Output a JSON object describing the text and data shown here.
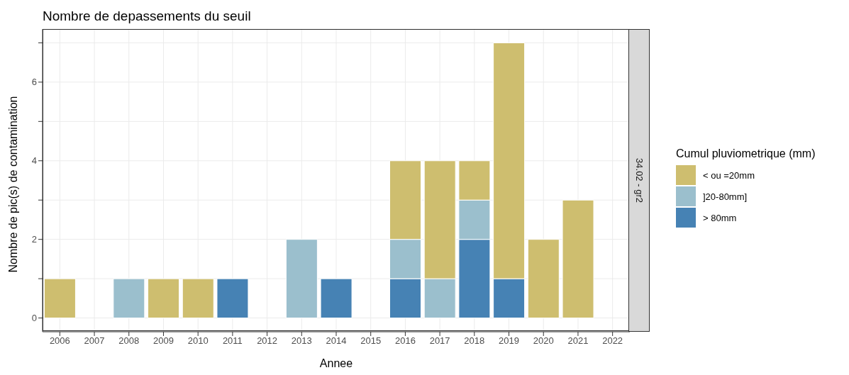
{
  "chart_data": {
    "type": "bar",
    "title": "Nombre de depassements du seuil",
    "xlabel": "Annee",
    "ylabel": "Nombre de pic(s) de contamination",
    "legend_title": "Cumul pluviometrique (mm)",
    "annotations": [
      "34.02 - gr2"
    ],
    "categories": [
      "2006",
      "2007",
      "2008",
      "2009",
      "2010",
      "2011",
      "2012",
      "2013",
      "2014",
      "2015",
      "2016",
      "2017",
      "2018",
      "2019",
      "2020",
      "2021",
      "2022"
    ],
    "stacked": true,
    "series": [
      {
        "name": "> 80mm",
        "color": "#4682b4",
        "values": [
          0,
          0,
          0,
          0,
          0,
          1,
          0,
          0,
          1,
          0,
          1,
          0,
          2,
          1,
          0,
          0,
          0
        ]
      },
      {
        "name": "]20-80mm]",
        "color": "#9bbfcd",
        "values": [
          0,
          0,
          1,
          0,
          0,
          0,
          0,
          2,
          0,
          0,
          1,
          1,
          1,
          0,
          0,
          0,
          0
        ]
      },
      {
        "name": "< ou =20mm",
        "color": "#cebe6f",
        "values": [
          1,
          0,
          0,
          1,
          1,
          0,
          0,
          0,
          0,
          0,
          2,
          3,
          1,
          6,
          2,
          3,
          0
        ]
      }
    ],
    "ylim": [
      -0.35,
      7.35
    ],
    "yticks": [
      0,
      {
        "value": 1,
        "label": null
      },
      2,
      {
        "value": 3,
        "label": null
      },
      4,
      {
        "value": 5,
        "label": null
      },
      6,
      {
        "value": 7,
        "label": null
      }
    ],
    "grid": true,
    "legend": "right"
  }
}
